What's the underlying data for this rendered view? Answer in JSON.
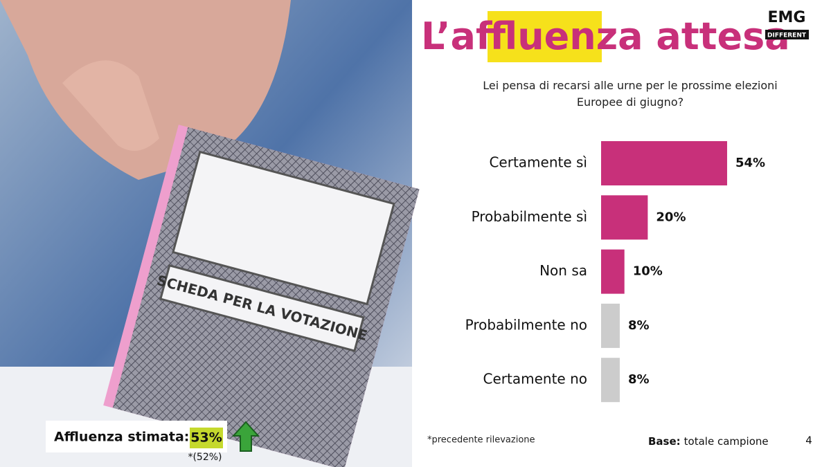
{
  "chart_data": {
    "type": "hbar",
    "title_parts": [
      "L’af",
      "fluenz",
      "a attesa"
    ],
    "subtitle": "Lei pensa di recarsi alle urne per le prossime elezioni Europee di giugno?",
    "categories": [
      "Certamente sì",
      "Probabilmente sì",
      "Non sa",
      "Probabilmente no",
      "Certamente no"
    ],
    "values": [
      54,
      20,
      10,
      8,
      8
    ],
    "value_labels": [
      "54%",
      "20%",
      "10%",
      "8%",
      "8%"
    ],
    "colors": [
      "#c8307a",
      "#c8307a",
      "#c8307a",
      "#cccccc",
      "#cccccc"
    ]
  },
  "logo": {
    "name": "EMG",
    "tagline": "DIFFERENT"
  },
  "estimate": {
    "label": "Affluenza stimata:",
    "value": "53%",
    "previous": "*(52%)"
  },
  "footnote": "*precedente rilevazione",
  "base": {
    "label": "Base:",
    "text": "totale campione"
  },
  "page_number": "4"
}
